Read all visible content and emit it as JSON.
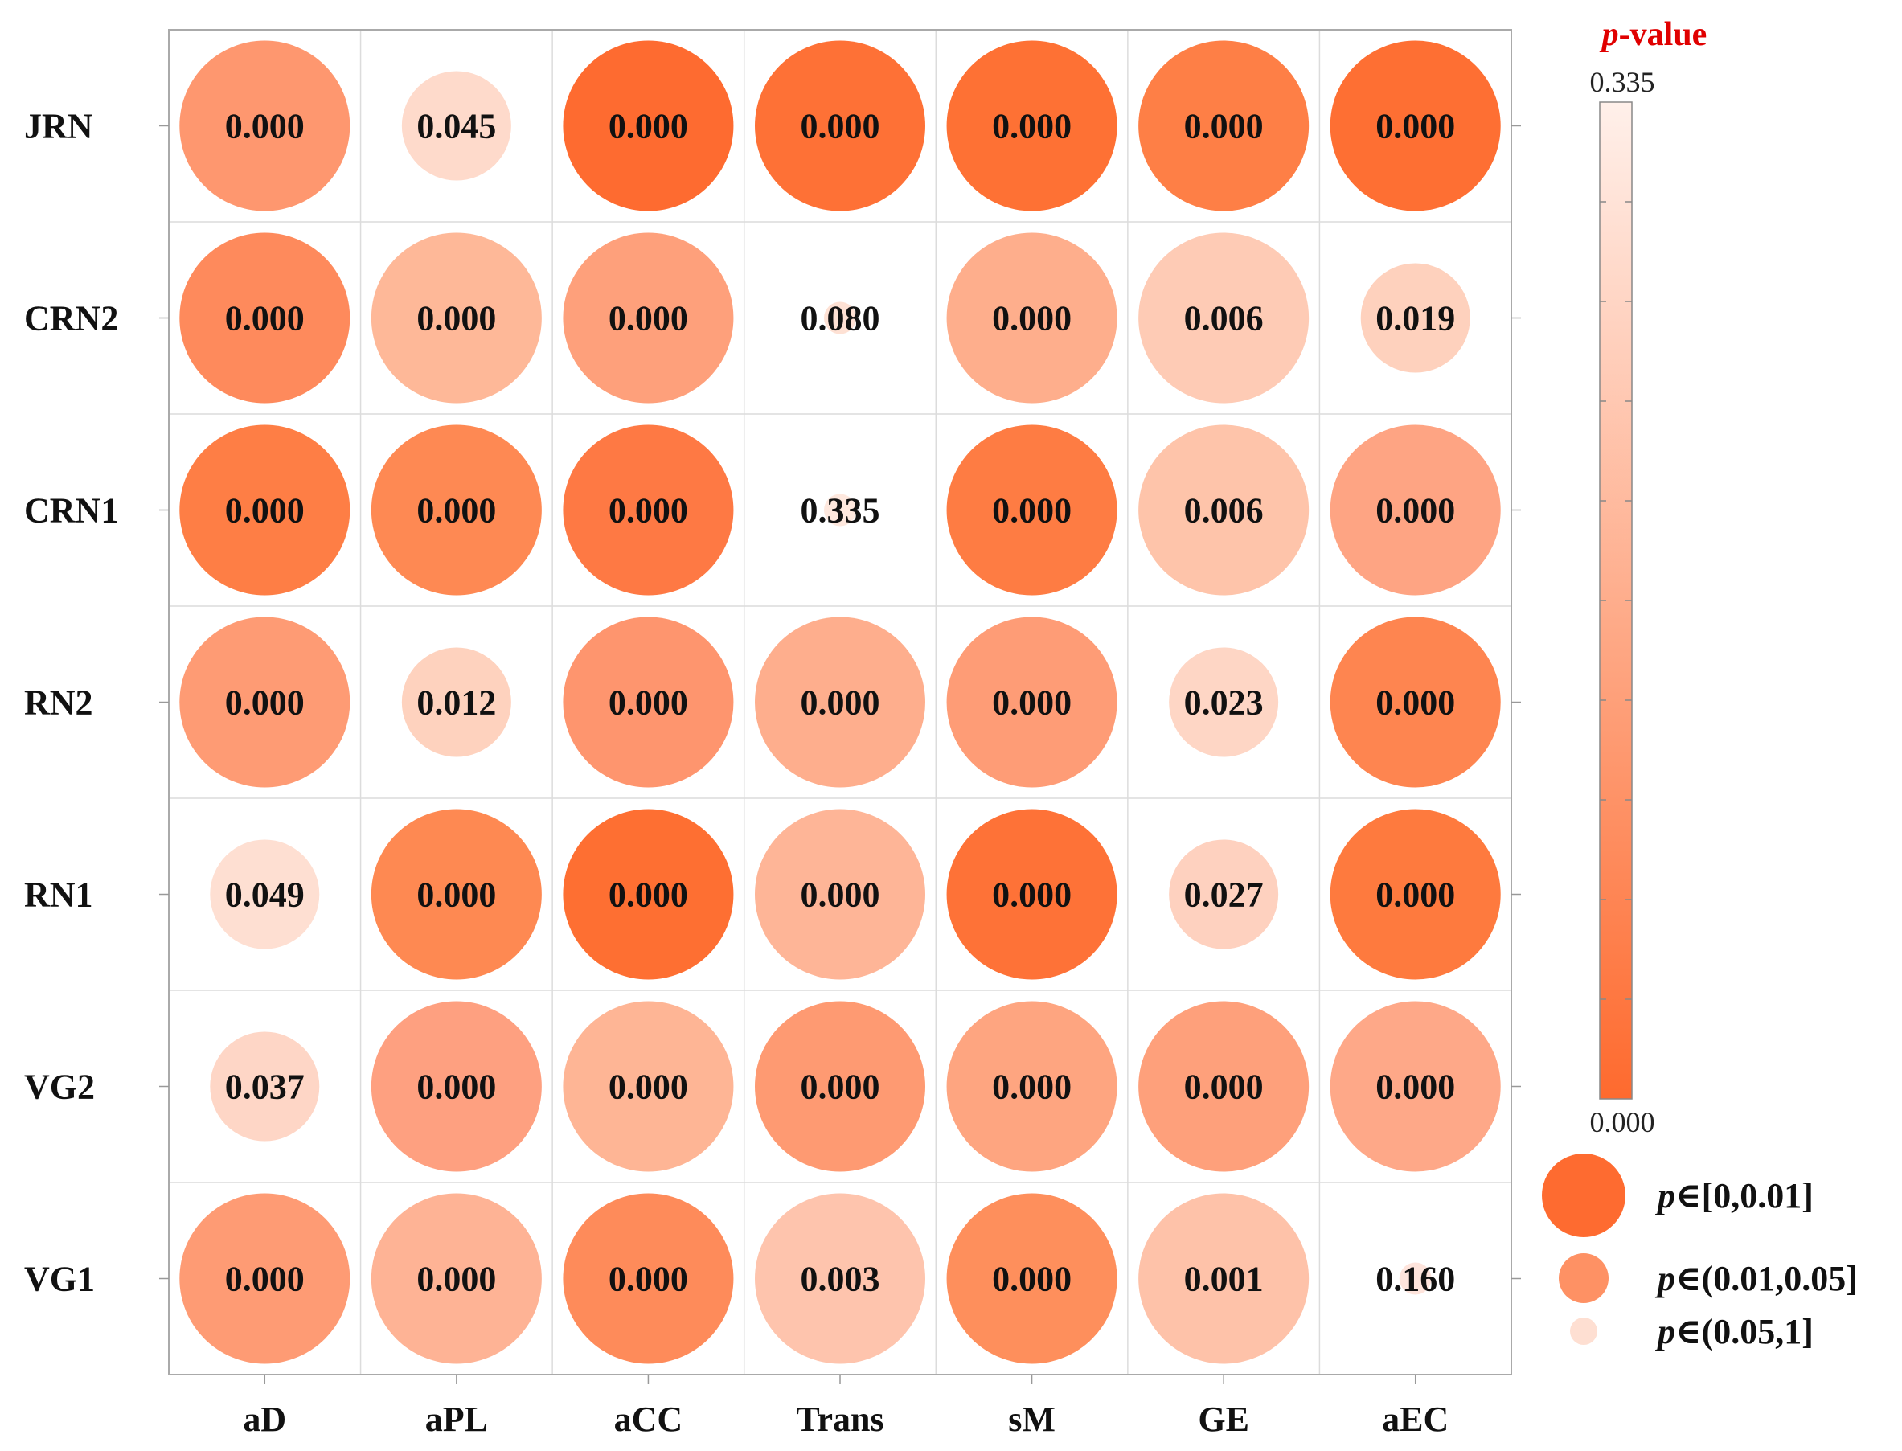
{
  "chart_data": {
    "type": "heatmap",
    "title": "p-value",
    "title_parts": {
      "italic": "p",
      "rest": "-value"
    },
    "columns": [
      "aD",
      "aPL",
      "aCC",
      "Trans",
      "sM",
      "GE",
      "aEC"
    ],
    "rows": [
      "JRN",
      "CRN2",
      "CRN1",
      "RN2",
      "RN1",
      "VG2",
      "VG1"
    ],
    "values": [
      [
        "0.000",
        "0.045",
        "0.000",
        "0.000",
        "0.000",
        "0.000",
        "0.000"
      ],
      [
        "0.000",
        "0.000",
        "0.000",
        "0.080",
        "0.000",
        "0.006",
        "0.019"
      ],
      [
        "0.000",
        "0.000",
        "0.000",
        "0.335",
        "0.000",
        "0.006",
        "0.000"
      ],
      [
        "0.000",
        "0.012",
        "0.000",
        "0.000",
        "0.000",
        "0.023",
        "0.000"
      ],
      [
        "0.049",
        "0.000",
        "0.000",
        "0.000",
        "0.000",
        "0.027",
        "0.000"
      ],
      [
        "0.037",
        "0.000",
        "0.000",
        "0.000",
        "0.000",
        "0.000",
        "0.000"
      ],
      [
        "0.000",
        "0.000",
        "0.000",
        "0.003",
        "0.000",
        "0.001",
        "0.160"
      ]
    ],
    "size_class": [
      [
        "large",
        "small",
        "large",
        "large",
        "large",
        "large",
        "large"
      ],
      [
        "large",
        "large",
        "large",
        "tiny",
        "large",
        "large",
        "small"
      ],
      [
        "large",
        "large",
        "large",
        "tiny",
        "large",
        "large",
        "large"
      ],
      [
        "large",
        "small",
        "large",
        "large",
        "large",
        "small",
        "large"
      ],
      [
        "small",
        "large",
        "large",
        "large",
        "large",
        "small",
        "large"
      ],
      [
        "small",
        "large",
        "large",
        "large",
        "large",
        "large",
        "large"
      ],
      [
        "large",
        "large",
        "large",
        "large",
        "large",
        "large",
        "tiny"
      ]
    ],
    "colors": [
      [
        "#fe976f",
        "#fedacb",
        "#fe6b30",
        "#fe7136",
        "#fe7134",
        "#fe7f46",
        "#fe6f33"
      ],
      [
        "#fe8a5c",
        "#feb898",
        "#fea07b",
        "#fee1d4",
        "#feae8c",
        "#fecbb5",
        "#fed1bd"
      ],
      [
        "#fe7e45",
        "#fe8953",
        "#fe7944",
        "#fee8de",
        "#fe7c43",
        "#fec4aa",
        "#fea483"
      ],
      [
        "#fe9b74",
        "#fed2be",
        "#fe956e",
        "#feae8d",
        "#fe9c76",
        "#fed6c5",
        "#fe8550"
      ],
      [
        "#fedfd2",
        "#fe8952",
        "#fe6f32",
        "#feb597",
        "#fe7237",
        "#fed1bf",
        "#fe7a3e"
      ],
      [
        "#fed6c6",
        "#fea080",
        "#feb595",
        "#fe9a72",
        "#fea580",
        "#fea07b",
        "#fea888"
      ],
      [
        "#fe9b74",
        "#feb395",
        "#fe8b5a",
        "#fec4ad",
        "#fe8f5c",
        "#fec2a9",
        "#fee4dc"
      ]
    ],
    "colorbar": {
      "min_label": "0.000",
      "max_label": "0.335",
      "min": 0,
      "max": 0.335,
      "color_low": "#fe6a2e",
      "color_high": "#fff0ea"
    },
    "size_legend": [
      {
        "label": "∈[0,0.01]",
        "italic": "p",
        "size_class": "large",
        "color": "#fe6b30"
      },
      {
        "label": "∈(0.01,0.05]",
        "italic": "p",
        "size_class": "small",
        "color": "#fe9164"
      },
      {
        "label": "∈(0.05,1]",
        "italic": "p",
        "size_class": "tiny",
        "color": "#fedfd2"
      }
    ],
    "grid": true
  }
}
